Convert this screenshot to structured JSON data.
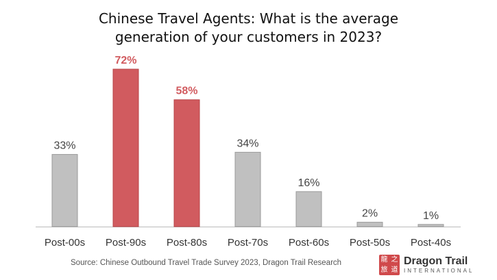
{
  "chart_data": {
    "type": "bar",
    "title": "Chinese Travel Agents: What is the average generation of your customers in 2023?",
    "title_lines": [
      "Chinese Travel Agents: What is the average",
      "generation of your customers in 2023?"
    ],
    "categories": [
      "Post-00s",
      "Post-90s",
      "Post-80s",
      "Post-70s",
      "Post-60s",
      "Post-50s",
      "Post-40s"
    ],
    "values": [
      33,
      72,
      58,
      34,
      16,
      2,
      1
    ],
    "value_labels": [
      "33%",
      "72%",
      "58%",
      "34%",
      "16%",
      "2%",
      "1%"
    ],
    "highlighted": [
      false,
      true,
      true,
      false,
      false,
      false,
      false
    ],
    "ylim": [
      0,
      72
    ],
    "grid": false,
    "xlabel": "",
    "ylabel": "",
    "colors": {
      "bar": "#c0c0c0",
      "highlight": "#d15b5f",
      "label": "#444444",
      "highlight_label": "#d15b5f",
      "axis": "#bbbbbb"
    }
  },
  "source": "Source: Chinese Outbound Travel Trade Survey 2023, Dragon Trail Research",
  "logo": {
    "name": "Dragon Trail",
    "subtitle": "INTERNATIONAL",
    "seal_chars": [
      "龍",
      "之",
      "旅",
      "道"
    ]
  }
}
